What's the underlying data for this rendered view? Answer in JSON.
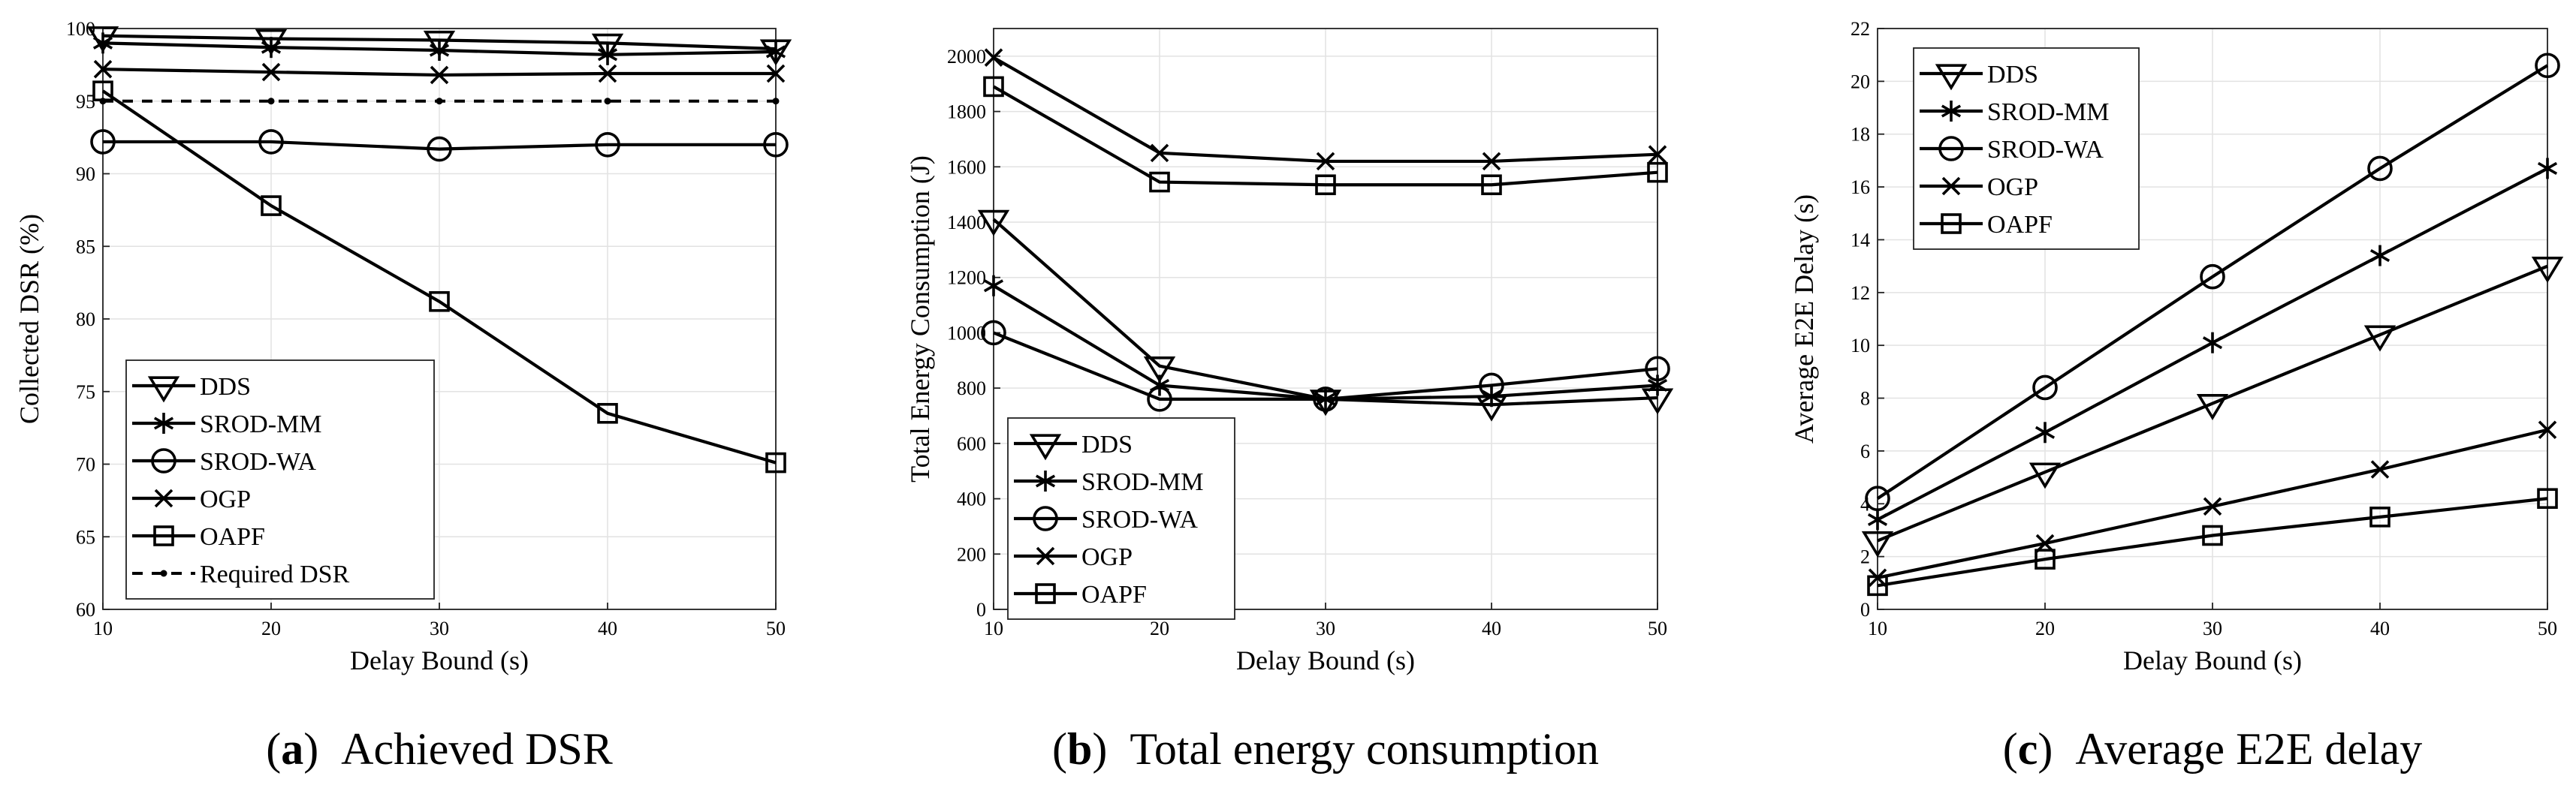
{
  "chart_data": [
    {
      "type": "line",
      "id": "a",
      "caption_letter": "a",
      "caption": "Achieved DSR",
      "xlabel": "Delay Bound (s)",
      "ylabel": "Collected DSR (%)",
      "x": [
        10,
        20,
        30,
        40,
        50
      ],
      "xlim": [
        10,
        50
      ],
      "ylim": [
        60,
        100
      ],
      "xticks": [
        10,
        20,
        30,
        40,
        50
      ],
      "yticks": [
        60,
        65,
        70,
        75,
        80,
        85,
        90,
        95,
        100
      ],
      "grid": true,
      "legend_position": "bottom-left",
      "series": [
        {
          "name": "DDS",
          "marker": "triangle-down",
          "values": [
            99.5,
            99.3,
            99.2,
            99.0,
            98.6
          ]
        },
        {
          "name": "SROD-MM",
          "marker": "asterisk",
          "values": [
            99.0,
            98.7,
            98.5,
            98.2,
            98.4
          ]
        },
        {
          "name": "SROD-WA",
          "marker": "circle",
          "values": [
            92.2,
            92.2,
            91.7,
            92.0,
            92.0
          ]
        },
        {
          "name": "OGP",
          "marker": "x",
          "values": [
            97.2,
            97.0,
            96.8,
            96.9,
            96.9
          ]
        },
        {
          "name": "OAPF",
          "marker": "square",
          "values": [
            95.7,
            87.8,
            81.2,
            73.5,
            70.1
          ]
        },
        {
          "name": "Required DSR",
          "marker": "dot",
          "dashed": true,
          "values": [
            95,
            95,
            95,
            95,
            95
          ]
        }
      ]
    },
    {
      "type": "line",
      "id": "b",
      "caption_letter": "b",
      "caption": "Total energy consumption",
      "xlabel": "Delay Bound (s)",
      "ylabel": "Total Energy Consumption (J)",
      "x": [
        10,
        20,
        30,
        40,
        50
      ],
      "xlim": [
        10,
        50
      ],
      "ylim": [
        0,
        2100
      ],
      "xticks": [
        10,
        20,
        30,
        40,
        50
      ],
      "yticks": [
        0,
        200,
        400,
        600,
        800,
        1000,
        1200,
        1400,
        1600,
        1800,
        2000
      ],
      "grid": true,
      "legend_position": "bottom-left",
      "series": [
        {
          "name": "DDS",
          "marker": "triangle-down",
          "values": [
            1410,
            880,
            760,
            740,
            765
          ]
        },
        {
          "name": "SROD-MM",
          "marker": "asterisk",
          "values": [
            1170,
            810,
            760,
            770,
            810
          ]
        },
        {
          "name": "SROD-WA",
          "marker": "circle",
          "values": [
            1000,
            760,
            760,
            810,
            870
          ]
        },
        {
          "name": "OGP",
          "marker": "x",
          "values": [
            1995,
            1650,
            1620,
            1620,
            1645
          ]
        },
        {
          "name": "OAPF",
          "marker": "square",
          "values": [
            1890,
            1545,
            1535,
            1535,
            1580
          ]
        }
      ]
    },
    {
      "type": "line",
      "id": "c",
      "caption_letter": "c",
      "caption": "Average E2E delay",
      "xlabel": "Delay Bound (s)",
      "ylabel": "Average E2E Delay (s)",
      "x": [
        10,
        20,
        30,
        40,
        50
      ],
      "xlim": [
        10,
        50
      ],
      "ylim": [
        0,
        22
      ],
      "xticks": [
        10,
        20,
        30,
        40,
        50
      ],
      "yticks": [
        0,
        2,
        4,
        6,
        8,
        10,
        12,
        14,
        16,
        18,
        20,
        22
      ],
      "grid": true,
      "legend_position": "top-left",
      "series": [
        {
          "name": "DDS",
          "marker": "triangle-down",
          "values": [
            2.6,
            5.2,
            7.8,
            10.4,
            13.0
          ]
        },
        {
          "name": "SROD-MM",
          "marker": "asterisk",
          "values": [
            3.4,
            6.7,
            10.1,
            13.4,
            16.7
          ]
        },
        {
          "name": "SROD-WA",
          "marker": "circle",
          "values": [
            4.2,
            8.4,
            12.6,
            16.7,
            20.6
          ]
        },
        {
          "name": "OGP",
          "marker": "x",
          "values": [
            1.2,
            2.5,
            3.9,
            5.3,
            6.8
          ]
        },
        {
          "name": "OAPF",
          "marker": "square",
          "values": [
            0.9,
            1.9,
            2.8,
            3.5,
            4.2
          ]
        }
      ]
    }
  ]
}
